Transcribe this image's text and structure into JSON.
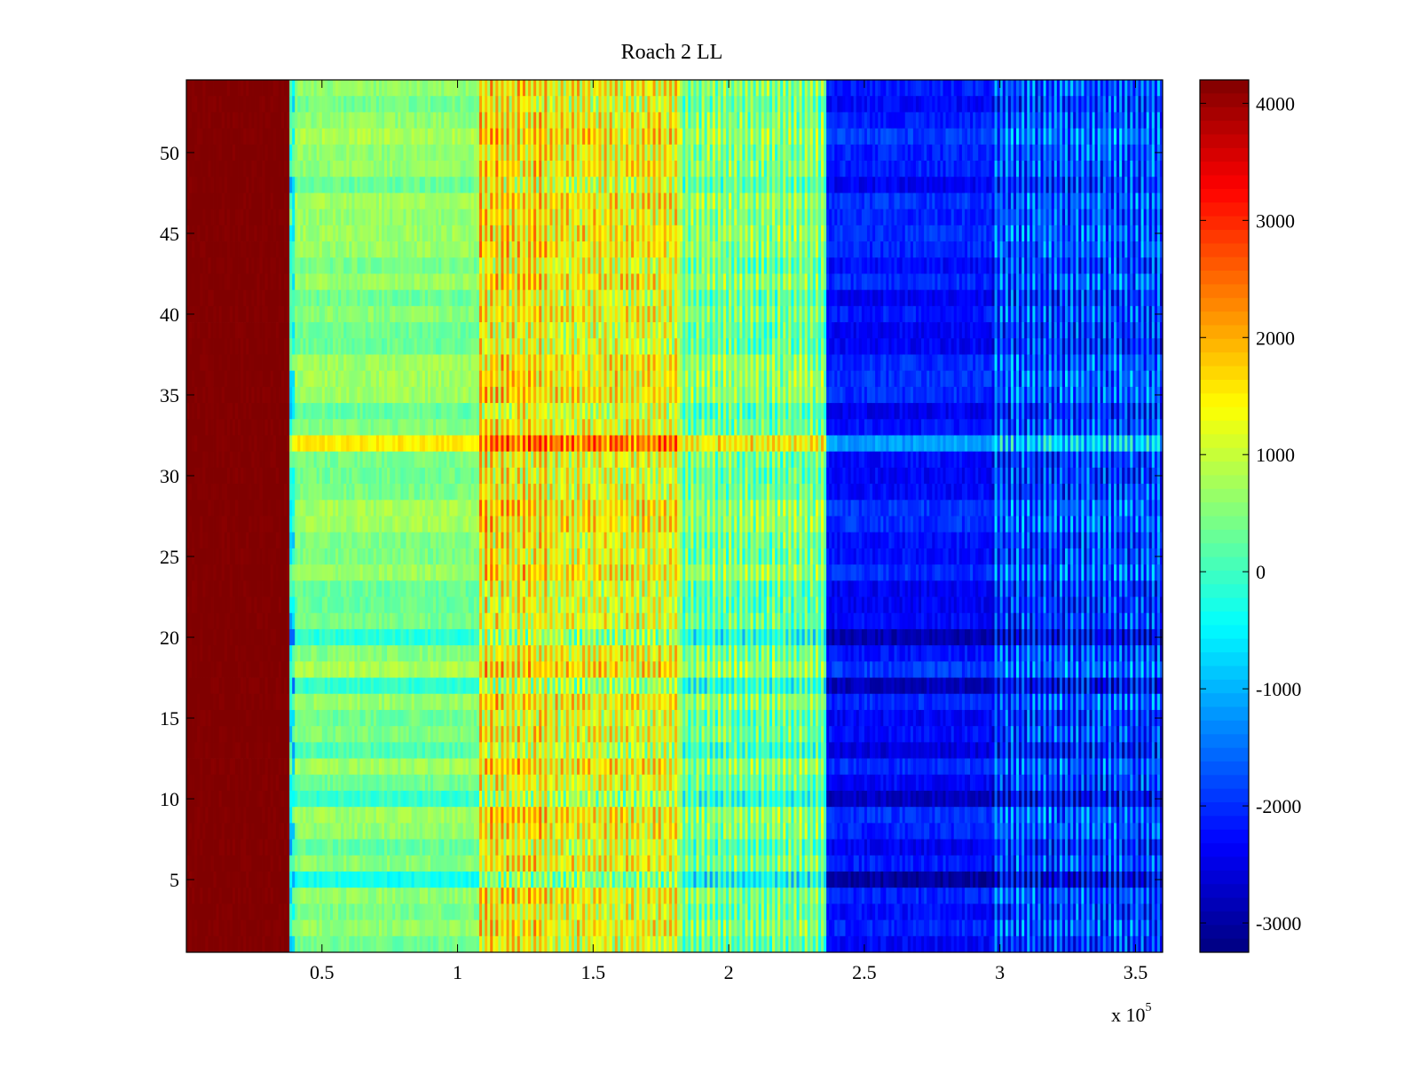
{
  "chart_data": {
    "type": "heatmap",
    "title": "Roach 2 LL",
    "xlabel": "",
    "ylabel": "",
    "x_multiplier_label": {
      "base": "x 10",
      "exponent": "5"
    },
    "xlim": [
      0,
      3.6
    ],
    "ylim": [
      0.5,
      54.5
    ],
    "x_ticks": [
      0.5,
      1,
      1.5,
      2,
      2.5,
      3,
      3.5
    ],
    "x_tick_labels": [
      "0.5",
      "1",
      "1.5",
      "2",
      "2.5",
      "3",
      "3.5"
    ],
    "y_ticks": [
      5,
      10,
      15,
      20,
      25,
      30,
      35,
      40,
      45,
      50
    ],
    "y_tick_labels": [
      "5",
      "10",
      "15",
      "20",
      "25",
      "30",
      "35",
      "40",
      "45",
      "50"
    ],
    "rows": 54,
    "colormap": "jet",
    "clim": [
      -3250,
      4200
    ],
    "colorbar_ticks": [
      4000,
      3000,
      2000,
      1000,
      0,
      -1000,
      -2000,
      -3000
    ],
    "colorbar_tick_labels": [
      "4000",
      "3000",
      "2000",
      "1000",
      "0",
      "-1000",
      "-2000",
      "-3000"
    ],
    "bands": [
      {
        "x_start": 0.0,
        "x_end": 0.38,
        "level": 4200,
        "variation": 150,
        "stripes": false
      },
      {
        "x_start": 0.38,
        "x_end": 0.4,
        "level": -300,
        "variation": 1500,
        "stripes": false
      },
      {
        "x_start": 0.4,
        "x_end": 1.08,
        "level": 500,
        "variation": 450,
        "stripes": false
      },
      {
        "x_start": 1.08,
        "x_end": 1.33,
        "level": 1500,
        "variation": 900,
        "stripes": true
      },
      {
        "x_start": 1.33,
        "x_end": 1.82,
        "level": 1300,
        "variation": 800,
        "stripes": true
      },
      {
        "x_start": 1.82,
        "x_end": 2.36,
        "level": 400,
        "variation": 700,
        "stripes": true
      },
      {
        "x_start": 2.36,
        "x_end": 2.97,
        "level": -2200,
        "variation": 500,
        "stripes": false
      },
      {
        "x_start": 2.97,
        "x_end": 3.6,
        "level": -1800,
        "variation": 900,
        "stripes": true
      }
    ],
    "anomaly_rows": [
      5,
      10,
      13,
      17,
      20,
      32
    ]
  },
  "colors": {
    "axis": "#000000",
    "background": "#ffffff"
  }
}
